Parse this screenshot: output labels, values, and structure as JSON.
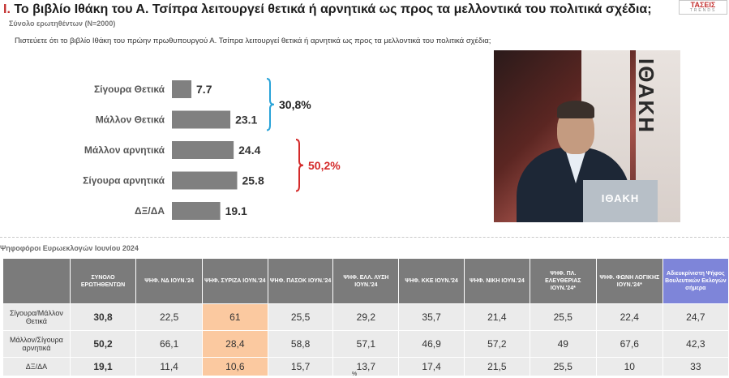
{
  "header": {
    "roman": "I.",
    "title": "Το βιβλίο Ιθάκη του Α. Τσίπρα λειτουργεί θετικά ή αρνητικά ως προς τα μελλοντικά του πολιτικά σχέδια;",
    "subtitle": "Σύνολο ερωτηθέντων (N=2000)",
    "question": "Πιστεύετε ότι το βιβλίο Ιθάκη του πρώην πρωθυπουργού Α. Τσίπρα λειτουργεί θετικά ή αρνητικά ως προς τα μελλοντικά του πολιτικά σχέδια;",
    "logo_main": "ΤΑΣΕΙΣ",
    "logo_sub": "TRENDS"
  },
  "photo": {
    "panel_text": "ΙΘΑΚΗ",
    "podium_text": "ΙΘΑΚΗ"
  },
  "chart_data": {
    "type": "bar",
    "orientation": "horizontal",
    "categories": [
      "Σίγουρα Θετικά",
      "Μάλλον Θετικά",
      "Μάλλον αρνητικά",
      "Σίγουρα αρνητικά",
      "ΔΞ/ΔΑ"
    ],
    "values": [
      7.7,
      23.1,
      24.4,
      25.8,
      19.1
    ],
    "value_labels": [
      "7.7",
      "23.1",
      "24.4",
      "25.8",
      "19.1"
    ],
    "bar_color": "#808080",
    "xlim": [
      0,
      28
    ],
    "grid": false,
    "groups": [
      {
        "label": "30,8%",
        "from": 0,
        "to": 1,
        "color": "#29a3d8"
      },
      {
        "label": "50,2%",
        "from": 2,
        "to": 3,
        "color": "#d42a2a"
      }
    ]
  },
  "table": {
    "caption": "Ψηφοφόροι Ευρωεκλογών Ιουνίου 2024",
    "headers": [
      "",
      "ΣΥΝΟΛΟ ΕΡΩΤΗΘΕΝΤΩΝ",
      "ΨΗΦ. ΝΔ ΙΟΥΝ.'24",
      "ΨΗΦ. ΣΥΡΙΖΑ ΙΟΥΝ.'24",
      "ΨΗΦ. ΠΑΣΟΚ ΙΟΥΝ.'24",
      "ΨΗΦ. ΕΛΛ. ΛΥΣΗ ΙΟΥΝ.'24",
      "ΨΗΦ. ΚΚΕ ΙΟΥΝ.'24",
      "ΨΗΦ. ΝΙΚΗ ΙΟΥΝ.'24",
      "ΨΗΦ. ΠΛ. ΕΛΕΥΘΕΡΙΑΣ ΙΟΥΝ.'24*",
      "ΨΗΦ. ΦΩΝΗ ΛΟΓΙΚΗΣ ΙΟΥΝ.'24*",
      "Αδιευκρίνιστη Ψήφος Βουλευτικών Εκλογών σήμερα"
    ],
    "rows": [
      {
        "label": "Σίγουρα/Μάλλον Θετικά",
        "cells": [
          "30,8",
          "22,5",
          "61",
          "25,5",
          "29,2",
          "35,7",
          "21,4",
          "25,5",
          "22,4",
          "24,7"
        ]
      },
      {
        "label": "Μάλλον/Σίγουρα αρνητικά",
        "cells": [
          "50,2",
          "66,1",
          "28,4",
          "58,8",
          "57,1",
          "46,9",
          "57,2",
          "49",
          "67,6",
          "42,3"
        ]
      },
      {
        "label": "ΔΞ/ΔΑ",
        "cells": [
          "19,1",
          "11,4",
          "10,6",
          "15,7",
          "13,7",
          "17,4",
          "21,5",
          "25,5",
          "10",
          "33"
        ]
      }
    ],
    "percent_sign": "%"
  }
}
